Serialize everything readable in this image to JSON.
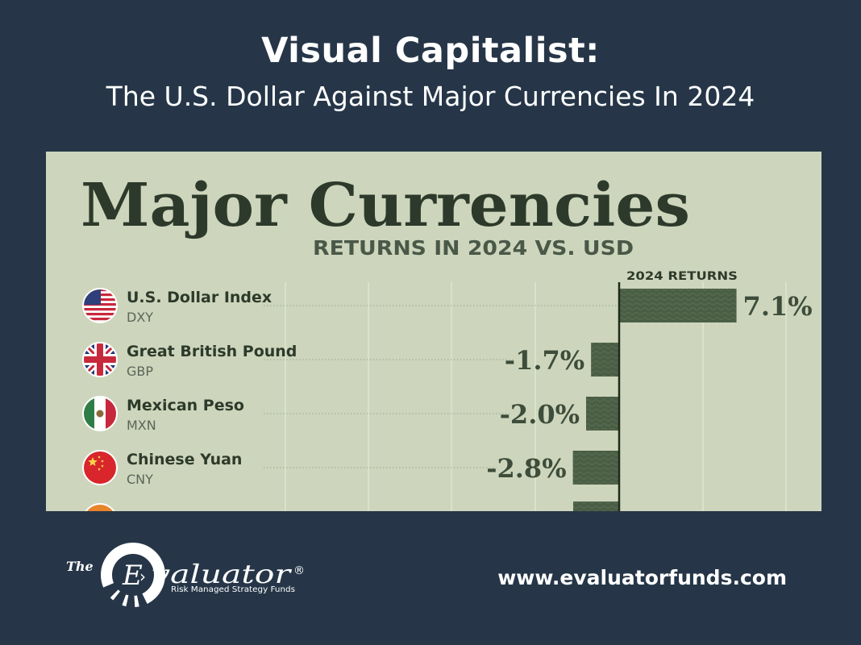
{
  "header": {
    "title": "Visual Capitalist:",
    "subtitle": "The U.S. Dollar Against Major Currencies In 2024"
  },
  "chart_data": {
    "type": "bar",
    "title": "Major Currencies",
    "subtitle": "RETURNS IN 2024 VS. USD",
    "column_label": "2024 RETURNS",
    "items": [
      {
        "name": "U.S. Dollar Index",
        "code": "DXY",
        "value": 7.1,
        "label": "7.1%",
        "flag": "us-flag-icon"
      },
      {
        "name": "Great British Pound",
        "code": "GBP",
        "value": -1.7,
        "label": "-1.7%",
        "flag": "uk-flag-icon"
      },
      {
        "name": "Mexican Peso",
        "code": "MXN",
        "value": -2.0,
        "label": "-2.0%",
        "flag": "mexico-flag-icon"
      },
      {
        "name": "Chinese Yuan",
        "code": "CNY",
        "value": -2.8,
        "label": "-2.8%",
        "flag": "china-flag-icon"
      }
    ],
    "grid": true,
    "colors": {
      "panel": "#cdd6bc",
      "bar": "#4a5e45",
      "text": "#2d3a2b",
      "subtext": "#5d6459"
    }
  },
  "footer": {
    "logo_the": "The",
    "logo_e": "E",
    "logo_name": "valuator",
    "logo_reg": "®",
    "logo_tagline": "Risk Managed Strategy Funds",
    "url": "www.evaluatorfunds.com"
  }
}
